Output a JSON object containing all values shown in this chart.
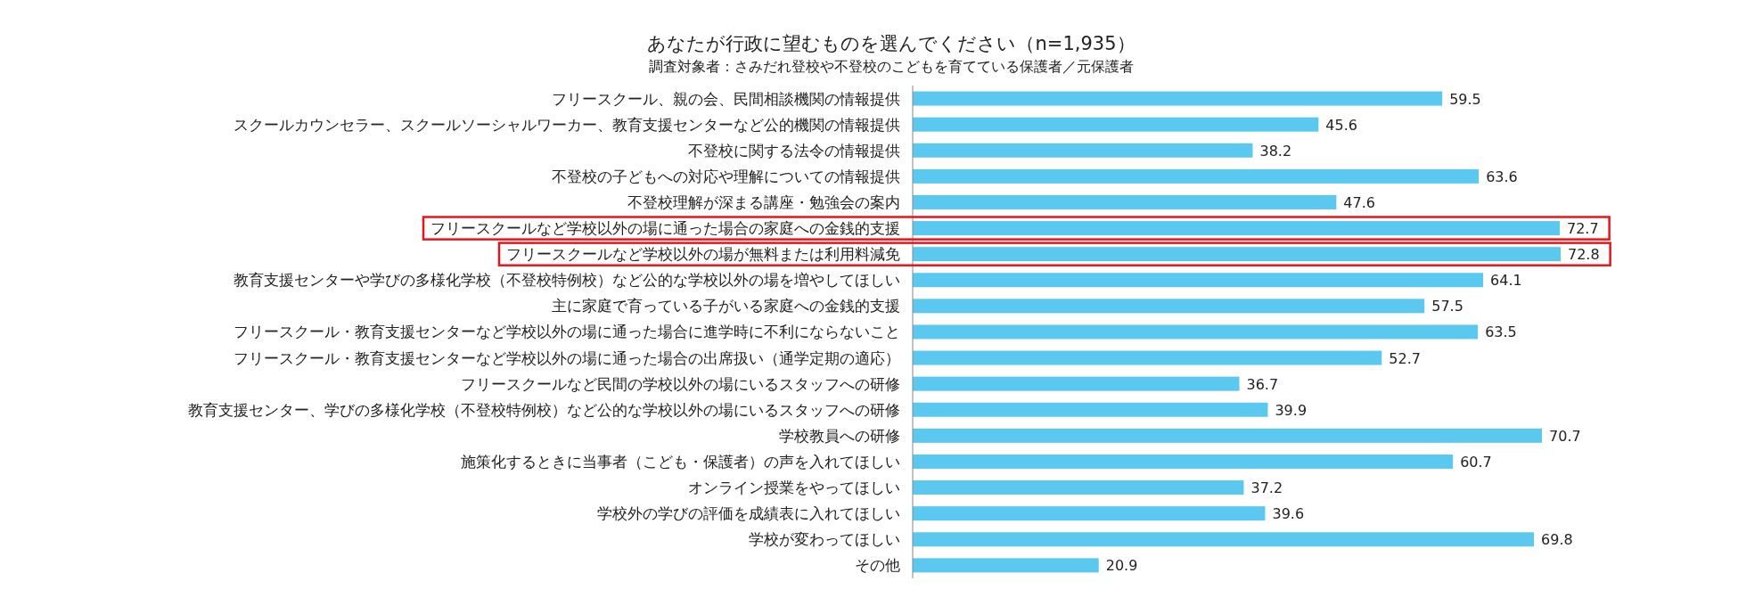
{
  "chart_data": {
    "type": "bar",
    "orientation": "horizontal",
    "title": "あなたが行政に望むものを選んでください（n=1,935）",
    "subtitle": "調査対象者：さみだれ登校や不登校のこどもを育てている保護者／元保護者",
    "categories": [
      "フリースクール、親の会、民間相談機関の情報提供",
      "スクールカウンセラー、スクールソーシャルワーカー、教育支援センターなど公的機関の情報提供",
      "不登校に関する法令の情報提供",
      "不登校の子どもへの対応や理解についての情報提供",
      "不登校理解が深まる講座・勉強会の案内",
      "フリースクールなど学校以外の場に通った場合の家庭への金銭的支援",
      "フリースクールなど学校以外の場が無料または利用料減免",
      "教育支援センターや学びの多様化学校（不登校特例校）など公的な学校以外の場を増やしてほしい",
      "主に家庭で育っている子がいる家庭への金銭的支援",
      "フリースクール・教育支援センターなど学校以外の場に通った場合に進学時に不利にならないこと",
      "フリースクール・教育支援センターなど学校以外の場に通った場合の出席扱い（通学定期の適応）",
      "フリースクールなど民間の学校以外の場にいるスタッフへの研修",
      "教育支援センター、学びの多様化学校（不登校特例校）など公的な学校以外の場にいるスタッフへの研修",
      "学校教員への研修",
      "施策化するときに当事者（こども・保護者）の声を入れてほしい",
      "オンライン授業をやってほしい",
      "学校外の学びの評価を成績表に入れてほしい",
      "学校が変わってほしい",
      "その他"
    ],
    "values": [
      59.5,
      45.6,
      38.2,
      63.6,
      47.6,
      72.7,
      72.8,
      64.1,
      57.5,
      63.5,
      52.7,
      36.7,
      39.9,
      70.7,
      60.7,
      37.2,
      39.6,
      69.8,
      20.9
    ],
    "color": "#5bc9ef",
    "data_labels": true
  }
}
